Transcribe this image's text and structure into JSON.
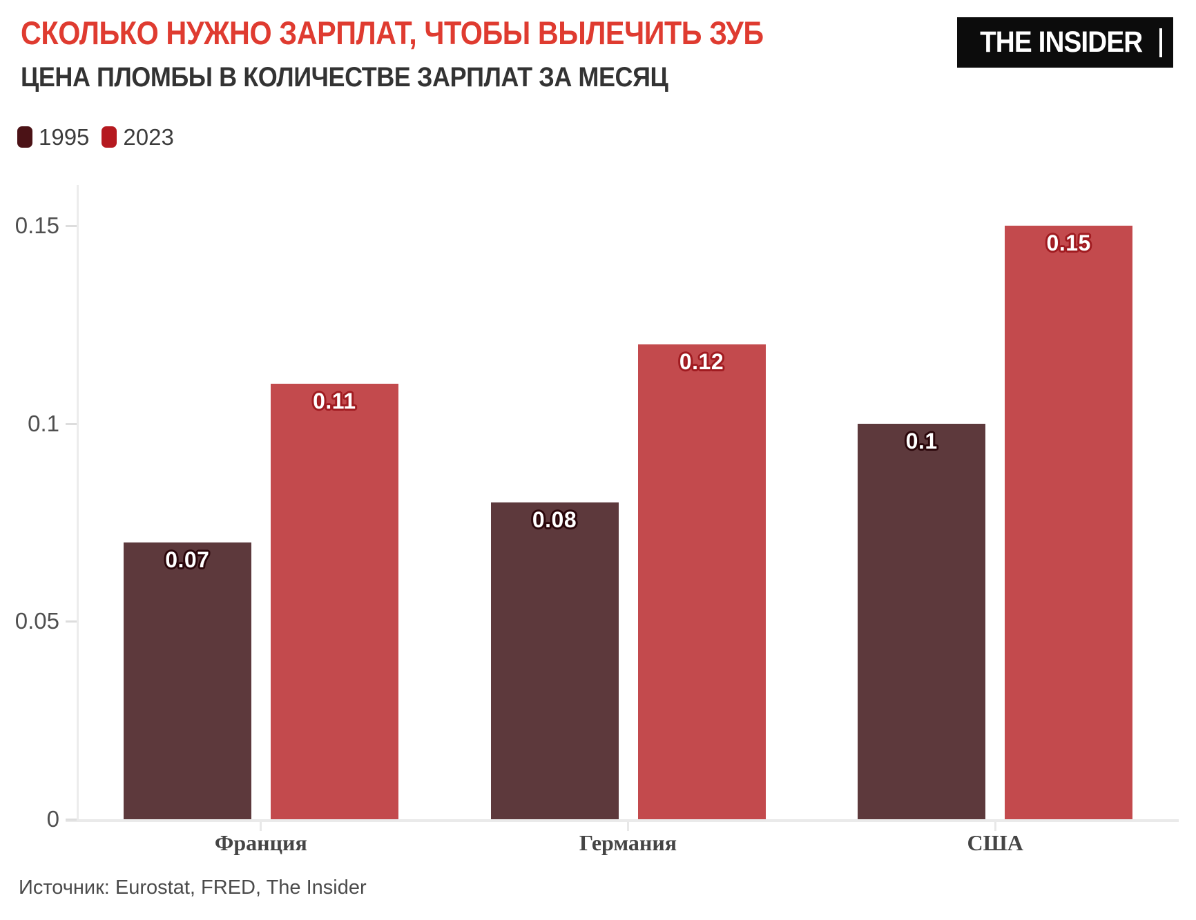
{
  "header": {
    "title": "СКОЛЬКО НУЖНО ЗАРПЛАТ, ЧТОБЫ ВЫЛЕЧИТЬ ЗУБ",
    "subtitle": "ЦЕНА ПЛОМБЫ В КОЛИЧЕСТВЕ ЗАРПЛАТ ЗА МЕСЯЦ"
  },
  "logo": {
    "text": "THE INSIDER"
  },
  "legend": {
    "items": [
      {
        "label": "1995",
        "color": "#4b1216"
      },
      {
        "label": "2023",
        "color": "#b5191f"
      }
    ]
  },
  "source": {
    "label": "Источник: Eurostat, FRED, The Insider"
  },
  "colors": {
    "title": "#df3b30",
    "subtitle": "#333333",
    "axis_line": "#ececec",
    "tick": "#dddddd",
    "tick_label": "#4f4f4f",
    "category_label": "#454545",
    "value_label": "#ffffff",
    "logo_bg": "#0c0c0c"
  },
  "chart_data": {
    "type": "bar",
    "title": "СКОЛЬКО НУЖНО ЗАРПЛАТ, ЧТОБЫ ВЫЛЕЧИТЬ ЗУБ",
    "subtitle": "ЦЕНА ПЛОМБЫ В КОЛИЧЕСТВЕ ЗАРПЛАТ ЗА МЕСЯЦ",
    "categories": [
      "Франция",
      "Германия",
      "США"
    ],
    "series": [
      {
        "name": "1995",
        "values": [
          0.07,
          0.08,
          0.1
        ],
        "labels": [
          "0.07",
          "0.08",
          "0.1"
        ],
        "bar_color": "#5d393c",
        "label_halo_color": "#2b070b"
      },
      {
        "name": "2023",
        "values": [
          0.11,
          0.12,
          0.15
        ],
        "labels": [
          "0.11",
          "0.12",
          "0.15"
        ],
        "bar_color": "#c34a4d",
        "label_halo_color": "#a01b20"
      }
    ],
    "yticks": [
      {
        "value": 0,
        "label": "0"
      },
      {
        "value": 0.05,
        "label": "0.05"
      },
      {
        "value": 0.1,
        "label": "0.1"
      },
      {
        "value": 0.15,
        "label": "0.15"
      }
    ],
    "ylim": [
      0,
      0.157
    ],
    "grid": false,
    "legend_position": "top-left",
    "value_labels": "inside-top",
    "source": "Источник: Eurostat, FRED, The Insider"
  }
}
